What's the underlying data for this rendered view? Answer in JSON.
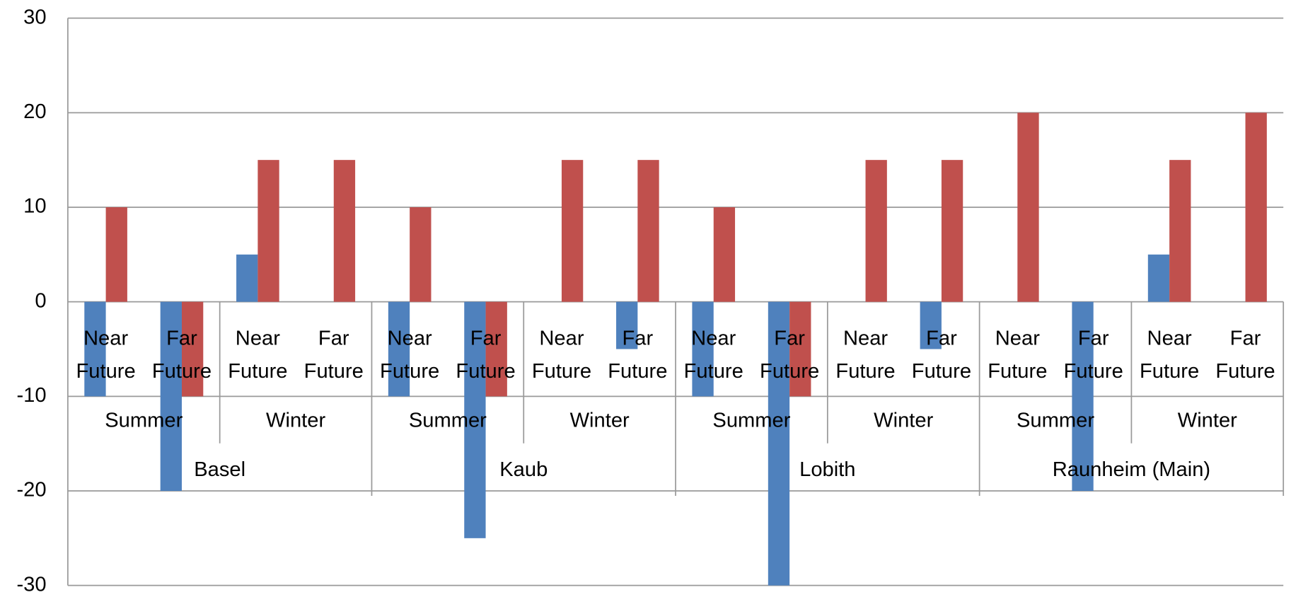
{
  "chart_data": {
    "type": "bar",
    "categories": [
      "Near Future",
      "Far Future",
      "Near Future",
      "Far Future",
      "Near Future",
      "Far Future",
      "Near Future",
      "Far Future",
      "Near Future",
      "Far Future",
      "Near Future",
      "Far Future",
      "Near Future",
      "Far Future",
      "Near Future",
      "Far Future"
    ],
    "seasons": [
      "Summer",
      "Winter",
      "Summer",
      "Winter",
      "Summer",
      "Winter",
      "Summer",
      "Winter"
    ],
    "stations": [
      "Basel",
      "Kaub",
      "Lobith",
      "Raunheim (Main)"
    ],
    "series": [
      {
        "color": "#4f81bd",
        "values": [
          -10,
          -20,
          5,
          0,
          -10,
          -25,
          0,
          -5,
          -10,
          -30,
          0,
          -5,
          0,
          -20,
          5,
          0
        ]
      },
      {
        "color": "#c0504d",
        "values": [
          10,
          -10,
          15,
          15,
          10,
          -10,
          15,
          15,
          10,
          -10,
          15,
          15,
          20,
          0,
          15,
          20
        ]
      }
    ],
    "ylim": [
      -30,
      30
    ],
    "yticks": [
      -30,
      -20,
      -10,
      0,
      10,
      20,
      30
    ],
    "grid": true
  }
}
